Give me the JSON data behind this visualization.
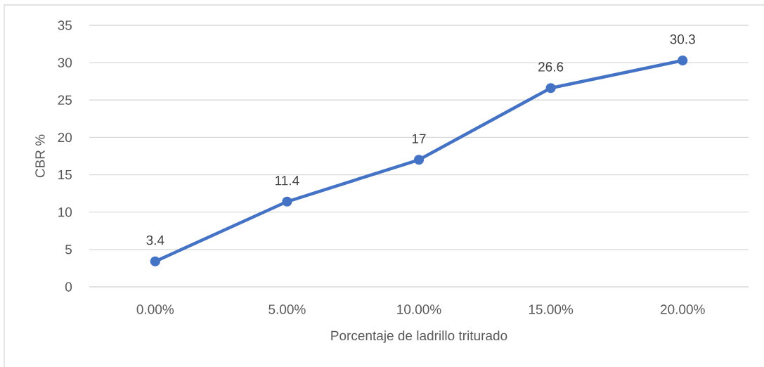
{
  "chart_data": {
    "type": "line",
    "xlabel": "Porcentaje de ladrillo triturado",
    "ylabel": "CBR %",
    "categories": [
      "0.00%",
      "5.00%",
      "10.00%",
      "15.00%",
      "20.00%"
    ],
    "values": [
      3.4,
      11.4,
      17,
      26.6,
      30.3
    ],
    "color": "#4472c4",
    "ylim": [
      0,
      35
    ],
    "yticks": [
      0,
      5,
      10,
      15,
      20,
      25,
      30,
      35
    ],
    "grid": "y",
    "marker": "circle",
    "line_style": "solid",
    "data_labels": true
  }
}
